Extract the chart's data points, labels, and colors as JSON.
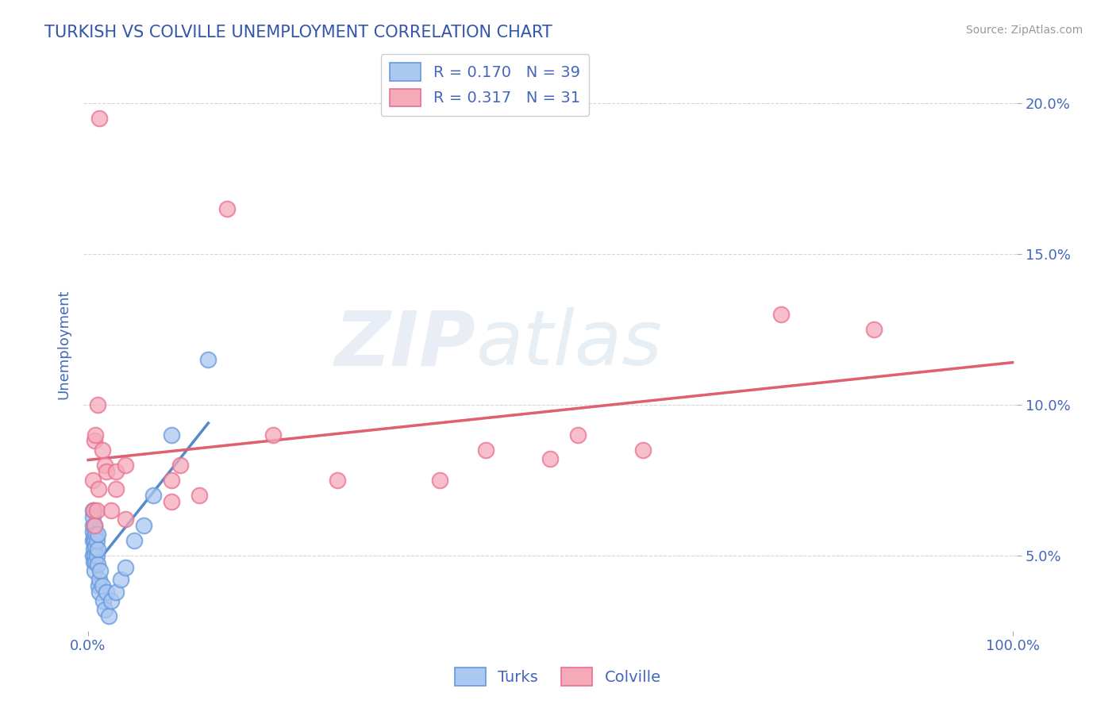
{
  "title": "TURKISH VS COLVILLE UNEMPLOYMENT CORRELATION CHART",
  "source": "Source: ZipAtlas.com",
  "ylabel": "Unemployment",
  "watermark_zip": "ZIP",
  "watermark_atlas": "atlas",
  "turks_R": 0.17,
  "turks_N": 39,
  "colville_R": 0.317,
  "colville_N": 31,
  "xlim": [
    -0.005,
    1.005
  ],
  "ylim": [
    0.025,
    0.215
  ],
  "yticks": [
    0.05,
    0.1,
    0.15,
    0.2
  ],
  "xtick_positions": [
    0.0,
    1.0
  ],
  "xtick_labels": [
    "0.0%",
    "100.0%"
  ],
  "turks_color": "#aac8f0",
  "colville_color": "#f5aaba",
  "turks_edge_color": "#6699dd",
  "colville_edge_color": "#e87090",
  "turks_line_color": "#5588cc",
  "colville_line_color": "#e06070",
  "background_color": "#ffffff",
  "grid_color": "#cccccc",
  "title_color": "#3355aa",
  "tick_label_color": "#4466bb",
  "turks_x": [
    0.005,
    0.005,
    0.005,
    0.005,
    0.005,
    0.005,
    0.006,
    0.006,
    0.006,
    0.007,
    0.007,
    0.007,
    0.007,
    0.008,
    0.008,
    0.008,
    0.009,
    0.009,
    0.01,
    0.01,
    0.01,
    0.011,
    0.012,
    0.012,
    0.013,
    0.015,
    0.016,
    0.018,
    0.02,
    0.022,
    0.025,
    0.03,
    0.035,
    0.04,
    0.05,
    0.06,
    0.07,
    0.09,
    0.13
  ],
  "turks_y": [
    0.05,
    0.055,
    0.058,
    0.06,
    0.063,
    0.065,
    0.048,
    0.052,
    0.056,
    0.045,
    0.05,
    0.055,
    0.06,
    0.048,
    0.053,
    0.057,
    0.05,
    0.055,
    0.047,
    0.052,
    0.057,
    0.04,
    0.038,
    0.042,
    0.045,
    0.04,
    0.035,
    0.032,
    0.038,
    0.03,
    0.035,
    0.038,
    0.042,
    0.046,
    0.055,
    0.06,
    0.07,
    0.09,
    0.115
  ],
  "colville_x": [
    0.005,
    0.006,
    0.007,
    0.007,
    0.008,
    0.009,
    0.01,
    0.011,
    0.012,
    0.015,
    0.018,
    0.02,
    0.025,
    0.03,
    0.03,
    0.04,
    0.04,
    0.09,
    0.09,
    0.1,
    0.12,
    0.15,
    0.2,
    0.27,
    0.38,
    0.43,
    0.5,
    0.53,
    0.6,
    0.75,
    0.85
  ],
  "colville_y": [
    0.075,
    0.065,
    0.088,
    0.06,
    0.09,
    0.065,
    0.1,
    0.072,
    0.195,
    0.085,
    0.08,
    0.078,
    0.065,
    0.072,
    0.078,
    0.062,
    0.08,
    0.068,
    0.075,
    0.08,
    0.07,
    0.165,
    0.09,
    0.075,
    0.075,
    0.085,
    0.082,
    0.09,
    0.085,
    0.13,
    0.125
  ]
}
